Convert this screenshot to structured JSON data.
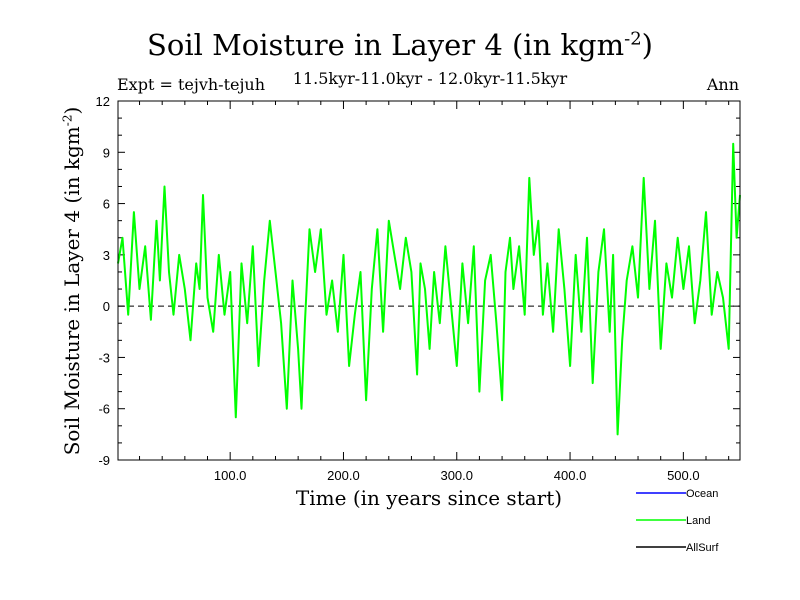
{
  "page": {
    "title_main": "Soil Moisture in Layer 4 (in kgm",
    "title_sup": "-2",
    "title_end": ")",
    "expt": "Expt = tejvh-tejuh",
    "subtitle": "11.5kyr-11.0kyr - 12.0kyr-11.5kyr",
    "season": "Ann",
    "xlabel": "Time (in years since start)",
    "ylabel_main": "Soil Moisture in Layer 4 (in kgm",
    "ylabel_sup": "-2",
    "ylabel_end": ")"
  },
  "chart_data": {
    "type": "line",
    "title": "Soil Moisture in Layer 4 (in kgm-2)",
    "xlabel": "Time (in years since start)",
    "ylabel": "Soil Moisture in Layer 4 (in kgm-2)",
    "xlim": [
      1,
      550
    ],
    "ylim": [
      -9,
      12
    ],
    "x_ticks": [
      100,
      200,
      300,
      400,
      500
    ],
    "x_tick_labels": [
      "100.0",
      "200.0",
      "300.0",
      "400.0",
      "500.0"
    ],
    "y_ticks": [
      -9,
      -6,
      -3,
      0,
      3,
      6,
      9,
      12
    ],
    "y_tick_labels": [
      "-9",
      "-6",
      "-3",
      "0",
      "3",
      "6",
      "9",
      "12"
    ],
    "zero_line": true,
    "legend": [
      {
        "name": "Ocean",
        "color": "#0000ff"
      },
      {
        "name": "Land",
        "color": "#00ff00"
      },
      {
        "name": "AllSurf",
        "color": "#000000"
      }
    ],
    "series": [
      {
        "name": "Land",
        "color": "#00ff00",
        "x": [
          1,
          5,
          10,
          15,
          20,
          25,
          30,
          35,
          38,
          42,
          46,
          50,
          55,
          60,
          65,
          70,
          73,
          76,
          80,
          85,
          90,
          95,
          100,
          105,
          110,
          115,
          120,
          125,
          130,
          135,
          140,
          145,
          150,
          155,
          160,
          163,
          166,
          170,
          175,
          180,
          185,
          190,
          195,
          200,
          205,
          210,
          215,
          220,
          225,
          230,
          235,
          240,
          245,
          250,
          255,
          260,
          265,
          268,
          272,
          276,
          280,
          285,
          290,
          295,
          300,
          305,
          310,
          315,
          320,
          325,
          330,
          335,
          340,
          343,
          347,
          350,
          355,
          360,
          364,
          368,
          372,
          376,
          380,
          385,
          390,
          395,
          400,
          405,
          410,
          415,
          420,
          425,
          430,
          435,
          438,
          442,
          446,
          450,
          455,
          460,
          465,
          470,
          475,
          480,
          485,
          490,
          495,
          500,
          505,
          510,
          515,
          520,
          525,
          530,
          535,
          540,
          544,
          547,
          550
        ],
        "values": [
          2.5,
          4.0,
          -0.5,
          5.5,
          1.0,
          3.5,
          -0.8,
          5.0,
          1.5,
          7.0,
          2.0,
          -0.5,
          3.0,
          1.0,
          -2.0,
          2.5,
          1.0,
          6.5,
          0.5,
          -1.5,
          3.0,
          -0.5,
          2.0,
          -6.5,
          2.5,
          -1.0,
          3.5,
          -3.5,
          1.5,
          5.0,
          2.0,
          -1.0,
          -6.0,
          1.5,
          -2.5,
          -6.0,
          -1.0,
          4.5,
          2.0,
          4.5,
          -0.5,
          1.5,
          -1.5,
          3.0,
          -3.5,
          -0.5,
          2.0,
          -5.5,
          1.0,
          4.5,
          -1.5,
          5.0,
          3.0,
          1.0,
          4.0,
          2.0,
          -4.0,
          2.5,
          1.0,
          -2.5,
          2.0,
          -1.0,
          3.5,
          0.0,
          -3.5,
          2.5,
          -1.0,
          3.5,
          -5.0,
          1.5,
          3.0,
          -1.0,
          -5.5,
          2.0,
          4.0,
          1.0,
          3.5,
          -0.5,
          7.5,
          3.0,
          5.0,
          -0.5,
          2.5,
          -1.5,
          4.5,
          1.0,
          -3.5,
          3.0,
          -1.5,
          4.0,
          -4.5,
          2.0,
          4.5,
          -1.5,
          3.0,
          -7.5,
          -2.0,
          1.5,
          3.5,
          0.5,
          7.5,
          1.0,
          5.0,
          -2.5,
          2.5,
          0.5,
          4.0,
          1.0,
          3.5,
          -1.0,
          1.5,
          5.5,
          -0.5,
          2.0,
          0.5,
          -2.5,
          9.5,
          4.0,
          6.5
        ]
      }
    ]
  }
}
